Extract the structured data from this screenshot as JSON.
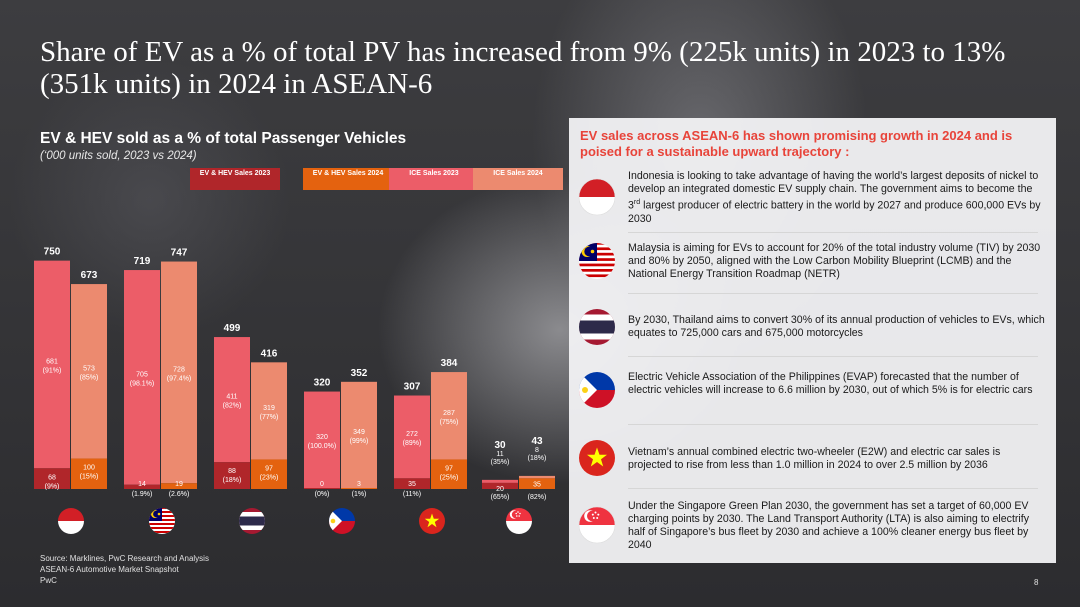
{
  "title": "Share of EV as a % of total PV has increased from 9% (225k units) in 2023 to 13% (351k units) in 2024 in ASEAN-6",
  "chart_title": "EV & HEV sold as a % of total Passenger Vehicles",
  "chart_subtitle": "(‘000 units sold, 2023 vs 2024)",
  "colors": {
    "ev2023": "#b0262a",
    "ev2024": "#e4620f",
    "ice2023": "#ec5d68",
    "ice2024": "#ec8a6f",
    "panel_heading": "#e8443a"
  },
  "chart_data": {
    "type": "bar",
    "stacked": true,
    "categories": [
      "Indonesia",
      "Malaysia",
      "Thailand",
      "Philippines",
      "Vietnam",
      "Singapore"
    ],
    "legend": [
      "EV & HEV Sales 2023",
      "EV & HEV Sales 2024",
      "ICE Sales 2023",
      "ICE Sales 2024"
    ],
    "legend_placement": "top",
    "series": [
      {
        "name": "2023",
        "totals": [
          750,
          719,
          499,
          320,
          307,
          30
        ],
        "ev": [
          68,
          14,
          88,
          0,
          35,
          20
        ],
        "ev_pct": [
          "(9%)",
          "(1.9%)",
          "(18%)",
          "(0%)",
          "(11%)",
          "(65%)"
        ],
        "ice": [
          681,
          705,
          411,
          320,
          272,
          11
        ],
        "ice_pct": [
          "(91%)",
          "(98.1%)",
          "(82%)",
          "(100.0%)",
          "(89%)",
          "(35%)"
        ]
      },
      {
        "name": "2024",
        "totals": [
          673,
          747,
          416,
          352,
          384,
          43
        ],
        "ev": [
          100,
          19,
          97,
          3,
          97,
          35
        ],
        "ev_pct": [
          "(15%)",
          "(2.6%)",
          "(23%)",
          "(1%)",
          "(25%)",
          "(82%)"
        ],
        "ice": [
          573,
          728,
          319,
          349,
          287,
          8
        ],
        "ice_pct": [
          "(85%)",
          "(97.4%)",
          "(77%)",
          "(99%)",
          "(75%)",
          "(18%)"
        ]
      }
    ],
    "ylim": [
      0,
      800
    ],
    "grid": false
  },
  "flags": [
    "indonesia-flag",
    "malaysia-flag",
    "thailand-flag",
    "philippines-flag",
    "vietnam-flag",
    "singapore-flag"
  ],
  "source": {
    "line1": "Source: Marklines, PwC Research and Analysis",
    "line2": "ASEAN-6 Automotive Market Snapshot",
    "line3": "PwC"
  },
  "panel": {
    "heading": "EV sales across ASEAN-6 has shown promising growth in 2024 and is poised for a sustainable upward trajectory :",
    "entries": [
      {
        "country": "Indonesia",
        "text": "Indonesia is looking to take advantage of having the world’s largest deposits of nickel to develop an integrated domestic EV supply chain. The government aims to become the 3rd largest producer of electric battery in the world by 2027 and produce 600,000 EVs by 2030"
      },
      {
        "country": "Malaysia",
        "text": "Malaysia is aiming for EVs to account for 20% of the total industry volume (TIV) by 2030 and 80% by 2050, aligned with the Low Carbon Mobility Blueprint (LCMB) and the National Energy Transition Roadmap (NETR)"
      },
      {
        "country": "Thailand",
        "text": "By 2030, Thailand aims to convert 30% of its annual production of vehicles to EVs, which equates to 725,000 cars and 675,000 motorcycles"
      },
      {
        "country": "Philippines",
        "text": "Electric Vehicle Association of the Philippines (EVAP) forecasted that the number of electric vehicles will increase to 6.6 million by 2030, out of which 5% is for electric cars"
      },
      {
        "country": "Vietnam",
        "text": "Vietnam’s annual combined electric two-wheeler (E2W) and electric car sales is projected to rise from less than 1.0 million in 2024 to over 2.5 million by 2036"
      },
      {
        "country": "Singapore",
        "text": "Under the Singapore Green Plan 2030, the government has set a target of 60,000 EV charging points by 2030. The Land Transport Authority (LTA) is also aiming to electrify half of Singapore’s bus fleet by 2030 and achieve a 100% cleaner energy bus fleet by 2040"
      }
    ]
  },
  "page_number": "8"
}
